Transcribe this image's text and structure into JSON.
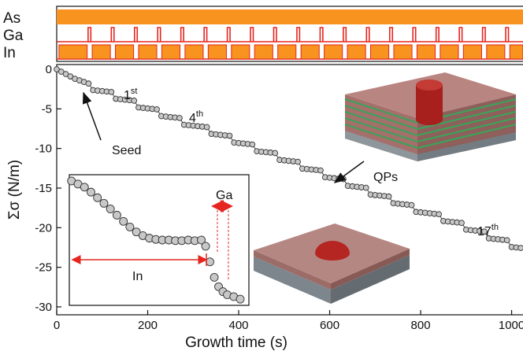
{
  "chart_data": [
    {
      "type": "timing",
      "xlim": [
        0,
        1025
      ],
      "channels": [
        {
          "name": "As",
          "color": "#f7931e",
          "intervals": [
            [
              0,
              1025
            ]
          ]
        },
        {
          "name": "Ga",
          "color": "#e5251f",
          "intervals": [
            [
              69,
              75
            ],
            [
              120,
              126
            ],
            [
              171,
              177
            ],
            [
              222,
              228
            ],
            [
              273,
              279
            ],
            [
              324,
              330
            ],
            [
              375,
              381
            ],
            [
              426,
              432
            ],
            [
              477,
              483
            ],
            [
              528,
              534
            ],
            [
              579,
              585
            ],
            [
              630,
              636
            ],
            [
              681,
              687
            ],
            [
              732,
              738
            ],
            [
              783,
              789
            ],
            [
              834,
              840
            ],
            [
              885,
              891
            ],
            [
              936,
              942
            ],
            [
              987,
              993
            ]
          ]
        },
        {
          "name": "In",
          "color": "#f7931e",
          "intervals": [
            [
              5,
              67
            ],
            [
              78,
              118
            ],
            [
              129,
              169
            ],
            [
              180,
              220
            ],
            [
              231,
              271
            ],
            [
              282,
              322
            ],
            [
              333,
              373
            ],
            [
              384,
              424
            ],
            [
              435,
              475
            ],
            [
              486,
              526
            ],
            [
              537,
              577
            ],
            [
              588,
              628
            ],
            [
              639,
              679
            ],
            [
              690,
              730
            ],
            [
              741,
              781
            ],
            [
              792,
              832
            ],
            [
              843,
              883
            ],
            [
              894,
              934
            ],
            [
              945,
              985
            ],
            [
              996,
              1025
            ]
          ]
        }
      ]
    },
    {
      "type": "line",
      "x_label": "Growth time (s)",
      "y_label": "Σσ (N/m)",
      "xlim": [
        0,
        1025
      ],
      "ylim": [
        -31,
        0.6
      ],
      "xticks": [
        0,
        200,
        400,
        600,
        800,
        1000
      ],
      "yticks": [
        0,
        -5,
        -10,
        -15,
        -20,
        -25,
        -30
      ],
      "x": [
        0,
        10,
        20,
        30,
        40,
        50,
        60,
        70,
        80,
        90,
        100,
        110,
        120,
        130,
        140,
        150,
        160,
        170,
        180,
        190,
        200,
        210,
        220,
        230,
        240,
        250,
        260,
        270,
        280,
        290,
        300,
        310,
        320,
        330,
        340,
        350,
        360,
        370,
        380,
        390,
        400,
        410,
        420,
        430,
        440,
        450,
        460,
        470,
        480,
        490,
        500,
        510,
        520,
        530,
        540,
        550,
        560,
        570,
        580,
        590,
        600,
        610,
        620,
        630,
        640,
        650,
        660,
        670,
        680,
        690,
        700,
        710,
        720,
        730,
        740,
        750,
        760,
        770,
        780,
        790,
        800,
        810,
        820,
        830,
        840,
        850,
        860,
        870,
        880,
        890,
        900,
        910,
        920,
        930,
        940,
        950,
        960,
        970,
        980,
        990,
        1000,
        1010,
        1020
      ],
      "values": [
        0,
        -0.3,
        -0.6,
        -0.9,
        -1.2,
        -1.4,
        -1.6,
        -1.8,
        -2.63,
        -2.69,
        -2.75,
        -2.81,
        -2.86,
        -3.72,
        -3.78,
        -3.84,
        -3.9,
        -3.96,
        -4.82,
        -4.88,
        -4.94,
        -5.0,
        -5.06,
        -5.91,
        -5.97,
        -6.03,
        -6.09,
        -6.15,
        -7.01,
        -7.06,
        -7.12,
        -7.18,
        -7.24,
        -7.3,
        -8.16,
        -8.22,
        -8.28,
        -8.34,
        -8.39,
        -9.25,
        -9.31,
        -9.37,
        -9.43,
        -9.49,
        -10.35,
        -10.41,
        -10.46,
        -10.52,
        -10.58,
        -11.44,
        -11.5,
        -11.56,
        -11.62,
        -11.68,
        -12.54,
        -12.59,
        -12.65,
        -12.71,
        -12.77,
        -13.63,
        -13.69,
        -13.75,
        -13.81,
        -13.86,
        -14.72,
        -14.78,
        -14.84,
        -14.9,
        -14.96,
        -15.82,
        -15.88,
        -15.94,
        -16.0,
        -16.06,
        -16.91,
        -16.97,
        -17.03,
        -17.09,
        -17.15,
        -18.01,
        -18.06,
        -18.12,
        -18.18,
        -18.24,
        -18.3,
        -19.16,
        -19.22,
        -19.28,
        -19.34,
        -19.39,
        -20.25,
        -20.31,
        -20.37,
        -20.43,
        -20.49,
        -21.35,
        -21.41,
        -21.46,
        -21.52,
        -21.58,
        -22.44,
        -22.5,
        -22.56
      ],
      "annotations": [
        {
          "text": "1",
          "sup": "st"
        },
        {
          "text": "4",
          "sup": "th"
        },
        {
          "text": "17",
          "sup": "th"
        },
        {
          "text": "Seed"
        },
        {
          "text": "QPs"
        }
      ]
    },
    {
      "type": "line",
      "xlim": [
        -1,
        82
      ],
      "ylim": [
        -2.0,
        0.1
      ],
      "x": [
        0,
        3,
        6,
        9,
        12,
        15,
        18,
        21,
        24,
        27,
        30,
        33,
        36,
        39,
        42,
        45,
        48,
        51,
        54,
        57,
        60,
        62,
        64,
        66,
        68,
        70,
        72,
        75,
        78
      ],
      "values": [
        0,
        -0.05,
        -0.1,
        -0.18,
        -0.27,
        -0.36,
        -0.45,
        -0.55,
        -0.65,
        -0.74,
        -0.82,
        -0.88,
        -0.92,
        -0.94,
        -0.95,
        -0.95,
        -0.96,
        -0.96,
        -0.95,
        -0.96,
        -0.95,
        -1.05,
        -1.3,
        -1.55,
        -1.7,
        -1.78,
        -1.83,
        -1.86,
        -1.9
      ],
      "annotations": [
        {
          "text": "In"
        },
        {
          "text": "Ga"
        }
      ]
    }
  ]
}
